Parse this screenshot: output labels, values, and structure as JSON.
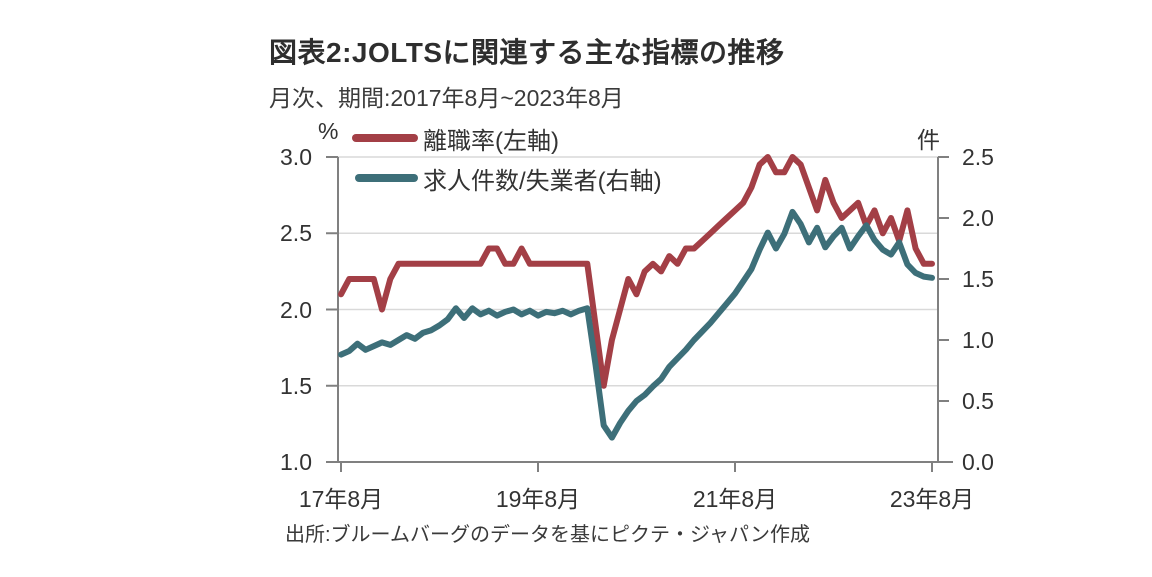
{
  "header": {
    "title": "図表2:JOLTSに関連する主な指標の推移",
    "subtitle": "月次、期間:2017年8月~2023年8月"
  },
  "source": {
    "text": "出所:ブルームバーグのデータを基にピクテ・ジャパン作成"
  },
  "chart_data": {
    "type": "line",
    "title": "図表2:JOLTSに関連する主な指標の推移",
    "period": {
      "frequency": "monthly",
      "start": "2017-08",
      "end": "2023-08"
    },
    "n_points": 73,
    "x_tick_labels": [
      "17年8月",
      "19年8月",
      "21年8月",
      "23年8月"
    ],
    "x_tick_month_index": [
      0,
      24,
      48,
      72
    ],
    "left_axis": {
      "unit": "%",
      "min": 1.0,
      "max": 3.0,
      "tick_values": [
        3.0,
        2.5,
        2.0,
        1.5,
        1.0
      ],
      "tick_labels": [
        "3.0",
        "2.5",
        "2.0",
        "1.5",
        "1.0"
      ]
    },
    "right_axis": {
      "unit": "件",
      "min": 0.0,
      "max": 2.5,
      "tick_values": [
        2.5,
        2.0,
        1.5,
        1.0,
        0.5,
        0.0
      ],
      "tick_labels": [
        "2.5",
        "2.0",
        "1.5",
        "1.0",
        "0.5",
        "0.0"
      ]
    },
    "gridline_values_left": [
      3.0,
      2.5,
      2.0,
      1.5
    ],
    "style": {
      "grid_color": "#d9d9d9",
      "axis_color": "#808080",
      "line_width": 6
    },
    "series": [
      {
        "name": "離職率(左軸)",
        "axis": "left",
        "color": "#a33f46",
        "values": [
          2.1,
          2.2,
          2.2,
          2.2,
          2.2,
          2.0,
          2.2,
          2.3,
          2.3,
          2.3,
          2.3,
          2.3,
          2.3,
          2.3,
          2.3,
          2.3,
          2.3,
          2.3,
          2.4,
          2.4,
          2.3,
          2.3,
          2.4,
          2.3,
          2.3,
          2.3,
          2.3,
          2.3,
          2.3,
          2.3,
          2.3,
          1.9,
          1.5,
          1.8,
          2.0,
          2.2,
          2.1,
          2.25,
          2.3,
          2.25,
          2.35,
          2.3,
          2.4,
          2.4,
          2.45,
          2.5,
          2.55,
          2.6,
          2.65,
          2.7,
          2.8,
          2.95,
          3.0,
          2.9,
          2.9,
          3.0,
          2.95,
          2.8,
          2.65,
          2.85,
          2.7,
          2.6,
          2.65,
          2.7,
          2.55,
          2.65,
          2.5,
          2.6,
          2.45,
          2.65,
          2.4,
          2.3,
          2.3
        ]
      },
      {
        "name": "求人件数/失業者(右軸)",
        "axis": "right",
        "color": "#3d6f79",
        "values": [
          0.88,
          0.91,
          0.97,
          0.92,
          0.95,
          0.98,
          0.96,
          1.0,
          1.04,
          1.01,
          1.06,
          1.08,
          1.12,
          1.17,
          1.26,
          1.18,
          1.26,
          1.21,
          1.24,
          1.2,
          1.23,
          1.25,
          1.21,
          1.24,
          1.2,
          1.23,
          1.22,
          1.24,
          1.21,
          1.24,
          1.26,
          0.8,
          0.3,
          0.2,
          0.32,
          0.42,
          0.5,
          0.55,
          0.62,
          0.68,
          0.78,
          0.85,
          0.92,
          1.0,
          1.07,
          1.14,
          1.22,
          1.3,
          1.38,
          1.48,
          1.58,
          1.74,
          1.88,
          1.75,
          1.87,
          2.05,
          1.95,
          1.8,
          1.92,
          1.76,
          1.85,
          1.92,
          1.75,
          1.85,
          1.94,
          1.82,
          1.74,
          1.7,
          1.8,
          1.62,
          1.55,
          1.52,
          1.51
        ]
      }
    ]
  }
}
